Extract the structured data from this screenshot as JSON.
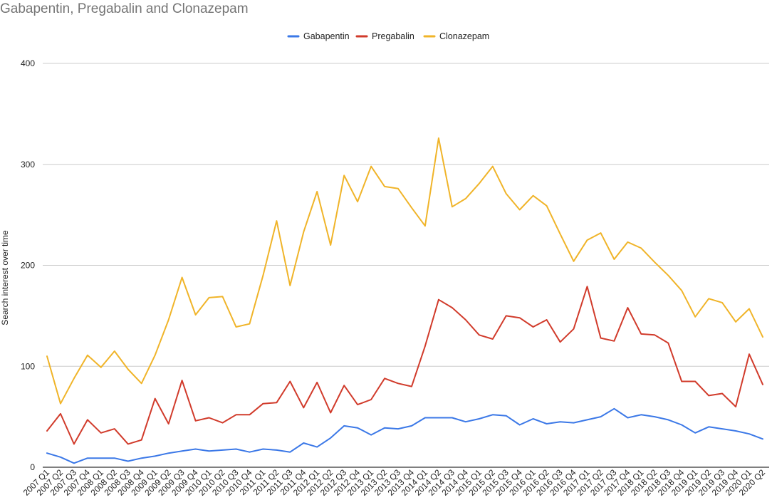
{
  "chart_data": {
    "type": "line",
    "title": "Gabapentin, Pregabalin and Clonazepam",
    "xlabel": "",
    "ylabel": "Search interest over time",
    "ylim": [
      0,
      400
    ],
    "yticks": [
      0,
      100,
      200,
      300,
      400
    ],
    "grid": true,
    "legend_position": "top",
    "categories": [
      "2007 Q1",
      "2007 Q2",
      "2007 Q3",
      "2007 Q4",
      "2008 Q1",
      "2008 Q2",
      "2008 Q3",
      "2008 Q4",
      "2009 Q1",
      "2009 Q2",
      "2009 Q3",
      "2009 Q4",
      "2010 Q1",
      "2010 Q2",
      "2010 Q3",
      "2010 Q4",
      "2011 Q1",
      "2011 Q2",
      "2011 Q3",
      "2011 Q4",
      "2012 Q1",
      "2012 Q2",
      "2012 Q3",
      "2012 Q4",
      "2013 Q1",
      "2013 Q2",
      "2013 Q3",
      "2013 Q4",
      "2014 Q1",
      "2014 Q2",
      "2014 Q3",
      "2014 Q4",
      "2015 Q1",
      "2015 Q2",
      "2015 Q3",
      "2015 Q4",
      "2016 Q1",
      "2016 Q2",
      "2016 Q3",
      "2016 Q4",
      "2017 Q1",
      "2017 Q2",
      "2017 Q3",
      "2017 Q4",
      "2018 Q1",
      "2018 Q2",
      "2018 Q3",
      "2018 Q4",
      "2019 Q1",
      "2019 Q2",
      "2019 Q3",
      "2019 Q4",
      "2020 Q1",
      "2020 Q2"
    ],
    "series": [
      {
        "name": "Gabapentin",
        "color": "#3b78e7",
        "values": [
          14,
          10,
          4,
          9,
          9,
          9,
          6,
          9,
          11,
          14,
          16,
          18,
          16,
          17,
          18,
          15,
          18,
          17,
          15,
          24,
          20,
          29,
          41,
          39,
          32,
          39,
          38,
          41,
          49,
          49,
          49,
          45,
          48,
          52,
          51,
          42,
          48,
          43,
          45,
          44,
          47,
          50,
          58,
          49,
          52,
          50,
          47,
          42,
          34,
          40,
          38,
          36,
          33,
          28
        ]
      },
      {
        "name": "Pregabalin",
        "color": "#d13b2b",
        "values": [
          36,
          53,
          23,
          47,
          34,
          38,
          23,
          27,
          68,
          43,
          86,
          46,
          49,
          44,
          52,
          52,
          63,
          64,
          85,
          59,
          84,
          54,
          81,
          62,
          67,
          88,
          83,
          80,
          120,
          166,
          158,
          146,
          131,
          127,
          150,
          148,
          139,
          146,
          124,
          137,
          179,
          128,
          125,
          158,
          132,
          131,
          123,
          85,
          85,
          71,
          73,
          60,
          112,
          82
        ]
      },
      {
        "name": "Clonazepam",
        "color": "#f0b429",
        "values": [
          110,
          63,
          88,
          111,
          99,
          115,
          97,
          83,
          111,
          146,
          188,
          151,
          168,
          169,
          139,
          142,
          190,
          244,
          180,
          233,
          273,
          220,
          289,
          263,
          298,
          278,
          276,
          257,
          239,
          326,
          258,
          266,
          281,
          298,
          271,
          255,
          269,
          259,
          231,
          204,
          225,
          232,
          206,
          223,
          217,
          203,
          190,
          175,
          149,
          167,
          163,
          144,
          157,
          129
        ]
      }
    ]
  }
}
